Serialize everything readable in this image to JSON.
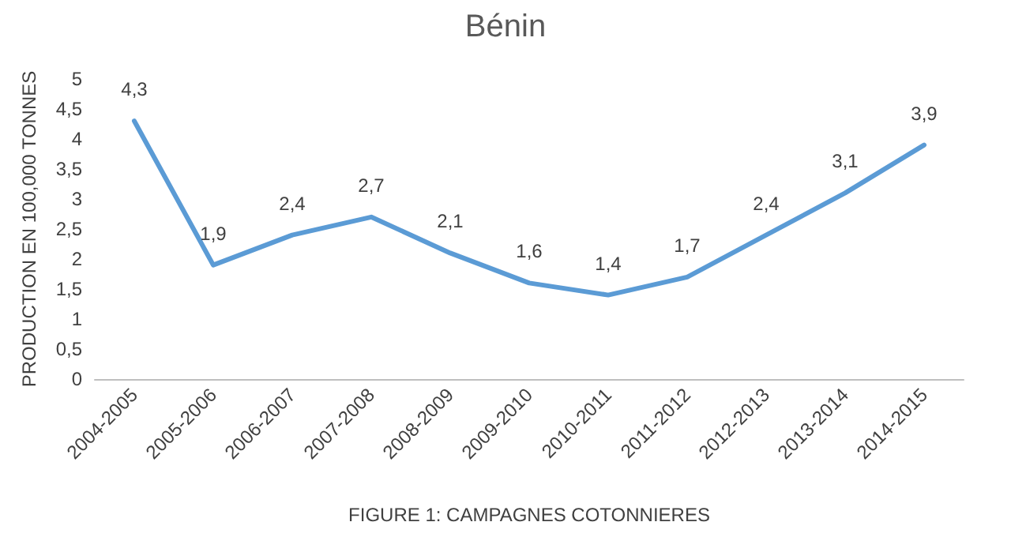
{
  "chart_data": {
    "type": "line",
    "title": "Bénin",
    "ylabel": "PRODUCTION EN 100,000 TONNES",
    "xlabel": "FIGURE 1: CAMPAGNES COTONNIERES",
    "categories": [
      "2004-2005",
      "2005-2006",
      "2006-2007",
      "2007-2008",
      "2008-2009",
      "2009-2010",
      "2010-2011",
      "2011-2012",
      "2012-2013",
      "2013-2014",
      "2014-2015"
    ],
    "series": [
      {
        "color": "#5b9bd5",
        "values": [
          4.3,
          1.9,
          2.4,
          2.7,
          2.1,
          1.6,
          1.4,
          1.7,
          2.4,
          3.1,
          3.9
        ],
        "value_labels": [
          "4,3",
          "1,9",
          "2,4",
          "2,7",
          "2,1",
          "1,6",
          "1,4",
          "1,7",
          "2,4",
          "3,1",
          "3,9"
        ]
      }
    ],
    "ylim": [
      0,
      5
    ],
    "yticks": [
      0,
      {
        "value": 0.5,
        "label": "0,5"
      },
      1,
      {
        "value": 1.5,
        "label": "1,5"
      },
      2,
      {
        "value": 2.5,
        "label": "2,5"
      },
      3,
      {
        "value": 3.5,
        "label": "3,5"
      },
      4,
      {
        "value": 4.5,
        "label": "4,5"
      },
      5
    ],
    "grid": false,
    "marker": "none",
    "line_style": "solid"
  }
}
